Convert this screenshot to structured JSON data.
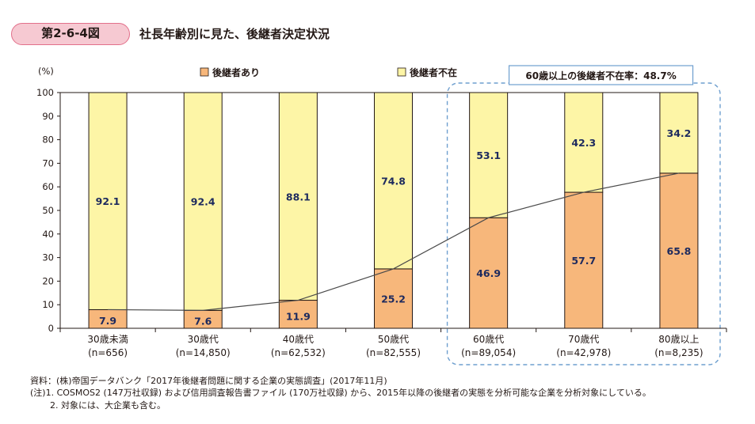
{
  "figure": {
    "number": "第2-6-4図",
    "title": "社長年齢別に見た、後継者決定状況"
  },
  "chart_data": {
    "type": "bar",
    "stacked": true,
    "ylabel": "(%)",
    "ylim": [
      0,
      100
    ],
    "yticks": [
      0,
      10,
      20,
      30,
      40,
      50,
      60,
      70,
      80,
      90,
      100
    ],
    "categories": [
      "30歳未満",
      "30歳代",
      "40歳代",
      "50歳代",
      "60歳代",
      "70歳代",
      "80歳以上"
    ],
    "category_counts": [
      "(n=656)",
      "(n=14,850)",
      "(n=62,532)",
      "(n=82,555)",
      "(n=89,054)",
      "(n=42,978)",
      "(n=8,235)"
    ],
    "series": [
      {
        "name": "後継者あり",
        "color": "#f7b77b",
        "values": [
          7.9,
          7.6,
          11.9,
          25.2,
          46.9,
          57.7,
          65.8
        ],
        "labels": [
          "7.9",
          "7.6",
          "11.9",
          "25.2",
          "46.9",
          "57.7",
          "65.8"
        ]
      },
      {
        "name": "後継者不在",
        "color": "#fdf5a6",
        "values": [
          92.1,
          92.4,
          88.1,
          74.8,
          53.1,
          42.3,
          34.2
        ],
        "labels": [
          "92.1",
          "92.4",
          "88.1",
          "74.8",
          "53.1",
          "42.3",
          "34.2"
        ]
      }
    ],
    "connector_line": true,
    "legend": "top-center",
    "grid": false,
    "annotation": {
      "text": "60歳以上の後継者不在率：48.7%",
      "highlight_categories": [
        "60歳代",
        "70歳代",
        "80歳以上"
      ]
    }
  },
  "notes": [
    "資料：(株)帝国データバンク「2017年後継者問題に関する企業の実態調査」(2017年11月)",
    "(注)1. COSMOS2 (147万社収録) および信用調査報告書ファイル (170万社収録) から、2015年以降の後継者の実態を分析可能な企業を分析対象にしている。",
    "2. 対象には、大企業も含む。"
  ],
  "colors": {
    "stroke": "#231815",
    "highlight_border": "#6e9fcf",
    "value_text": "#1d2a5e"
  }
}
